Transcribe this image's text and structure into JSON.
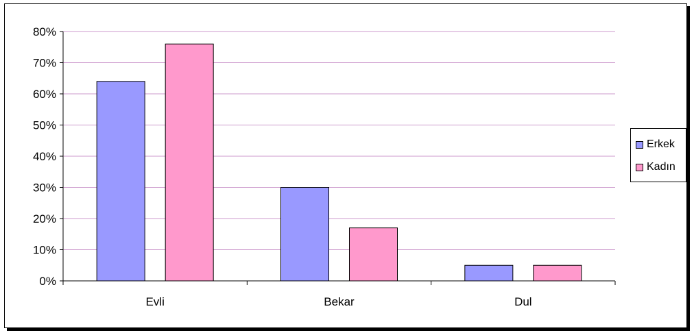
{
  "chart_data": {
    "type": "bar",
    "categories": [
      "Evli",
      "Bekar",
      "Dul"
    ],
    "series": [
      {
        "name": "Erkek",
        "values": [
          64,
          30,
          5
        ],
        "color": "#9999ff"
      },
      {
        "name": "Kadın",
        "values": [
          76,
          17,
          5
        ],
        "color": "#ff99cc"
      }
    ],
    "ylim": [
      0,
      80
    ],
    "ytick_step": 10,
    "ytick_labels": [
      "0%",
      "10%",
      "20%",
      "30%",
      "40%",
      "50%",
      "60%",
      "70%",
      "80%"
    ],
    "grid": true,
    "grid_color": "#cc99cc",
    "legend_position": "right",
    "title": "",
    "xlabel": "",
    "ylabel": ""
  }
}
